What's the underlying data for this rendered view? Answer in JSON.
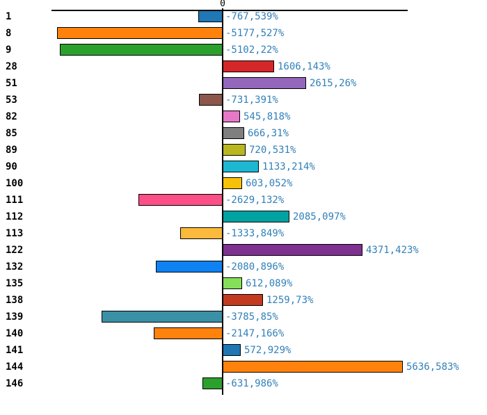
{
  "chart_data": {
    "type": "bar",
    "orientation": "horizontal",
    "title": "",
    "xlabel": "",
    "ylabel": "",
    "zero_label": "0",
    "grid": false,
    "legend": false,
    "xlim": [
      -5360,
      5790
    ],
    "categories": [
      "1",
      "8",
      "9",
      "28",
      "51",
      "53",
      "82",
      "85",
      "89",
      "90",
      "100",
      "111",
      "112",
      "113",
      "122",
      "132",
      "135",
      "138",
      "139",
      "140",
      "141",
      "144",
      "146"
    ],
    "values": [
      -767.539,
      -5177.527,
      -5102.22,
      1606.143,
      2615.26,
      -731.391,
      545.818,
      666.31,
      720.531,
      1133.214,
      603.052,
      -2629.132,
      2085.097,
      -1333.849,
      4371.423,
      -2080.896,
      612.089,
      1259.73,
      -3785.85,
      -2147.166,
      572.929,
      5636.583,
      -631.986
    ],
    "value_labels": [
      "-767,539%",
      "-5177,527%",
      "-5102,22%",
      "1606,143%",
      "2615,26%",
      "-731,391%",
      "545,818%",
      "666,31%",
      "720,531%",
      "1133,214%",
      "603,052%",
      "-2629,132%",
      "2085,097%",
      "-1333,849%",
      "4371,423%",
      "-2080,896%",
      "612,089%",
      "1259,73%",
      "-3785,85%",
      "-2147,166%",
      "572,929%",
      "5636,583%",
      "-631,986%"
    ],
    "bar_colors": [
      "#1f77b4",
      "#ff820d",
      "#2ca02c",
      "#d62728",
      "#9467bd",
      "#8c564b",
      "#e678c8",
      "#7f7f7f",
      "#b8b81e",
      "#1cb8d2",
      "#f5c10a",
      "#fc4f87",
      "#00a2a2",
      "#fcba3c",
      "#7e3191",
      "#0e82f2",
      "#85df58",
      "#c43a20",
      "#3a90a5",
      "#ff820d",
      "#1f77b4",
      "#ff820d",
      "#2ca02c"
    ],
    "styles": {
      "value_label_color": "#3080b8",
      "category_label_color": "#000000",
      "axis_color": "#000000",
      "bar_border_color": "#000000",
      "background": "#ffffff"
    }
  }
}
